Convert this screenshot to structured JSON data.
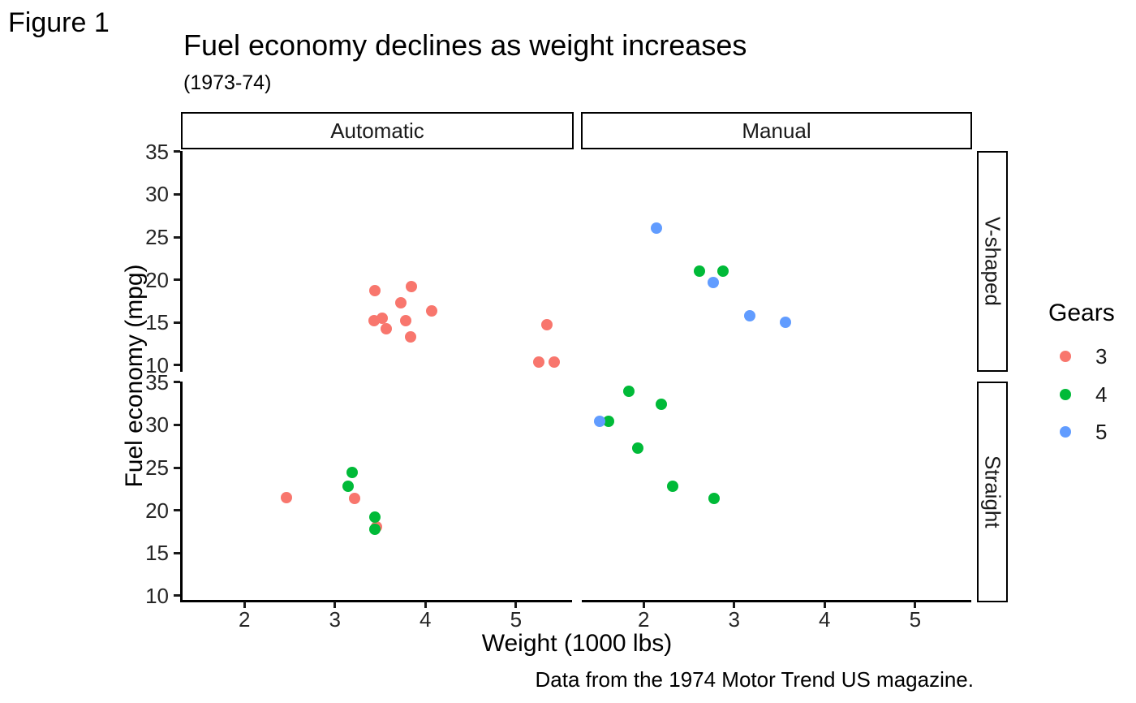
{
  "figure_label": "Figure 1",
  "chart_data": {
    "type": "scatter",
    "title": "Fuel economy declines as weight increases",
    "subtitle": "(1973-74)",
    "caption": "Data from the 1974 Motor Trend US magazine.",
    "xlabel": "Weight (1000 lbs)",
    "ylabel": "Fuel economy (mpg)",
    "grid": false,
    "x_ticks": [
      2,
      3,
      4,
      5
    ],
    "y_ticks": [
      10,
      15,
      20,
      25,
      30,
      35
    ],
    "x_domain": [
      1.317,
      5.62
    ],
    "y_domain": [
      9.225,
      35.075
    ],
    "facet_columns": [
      "Automatic",
      "Manual"
    ],
    "facet_rows": [
      "V-shaped",
      "Straight"
    ],
    "legend": {
      "title": "Gears",
      "position": "right",
      "entries": [
        {
          "label": "3",
          "color": "#F8766D"
        },
        {
          "label": "4",
          "color": "#00BA38"
        },
        {
          "label": "5",
          "color": "#619CFF"
        }
      ]
    },
    "point_fields": [
      "weight_1000lbs",
      "mpg",
      "gears"
    ],
    "facets": [
      {
        "column": "Automatic",
        "row": "V-shaped",
        "points": [
          [
            3.44,
            18.7,
            3
          ],
          [
            3.57,
            14.3,
            3
          ],
          [
            4.07,
            16.4,
            3
          ],
          [
            3.73,
            17.3,
            3
          ],
          [
            3.78,
            15.2,
            3
          ],
          [
            5.25,
            10.4,
            3
          ],
          [
            5.424,
            10.4,
            3
          ],
          [
            5.345,
            14.7,
            3
          ],
          [
            3.52,
            15.5,
            3
          ],
          [
            3.435,
            15.2,
            3
          ],
          [
            3.84,
            13.3,
            3
          ],
          [
            3.845,
            19.2,
            3
          ]
        ]
      },
      {
        "column": "Automatic",
        "row": "Straight",
        "points": [
          [
            3.215,
            21.4,
            3
          ],
          [
            3.46,
            18.1,
            3
          ],
          [
            3.19,
            24.4,
            4
          ],
          [
            3.15,
            22.8,
            4
          ],
          [
            3.44,
            19.2,
            4
          ],
          [
            3.44,
            17.8,
            4
          ],
          [
            2.465,
            21.5,
            3
          ]
        ]
      },
      {
        "column": "Manual",
        "row": "V-shaped",
        "points": [
          [
            2.62,
            21.0,
            4
          ],
          [
            2.875,
            21.0,
            4
          ],
          [
            2.14,
            26.0,
            5
          ],
          [
            3.17,
            15.8,
            5
          ],
          [
            2.77,
            19.7,
            5
          ],
          [
            3.57,
            15.0,
            5
          ]
        ]
      },
      {
        "column": "Manual",
        "row": "Straight",
        "points": [
          [
            2.32,
            22.8,
            4
          ],
          [
            2.2,
            32.4,
            4
          ],
          [
            1.615,
            30.4,
            4
          ],
          [
            1.835,
            33.9,
            4
          ],
          [
            1.935,
            27.3,
            4
          ],
          [
            1.513,
            30.4,
            5
          ],
          [
            2.78,
            21.4,
            4
          ]
        ]
      }
    ]
  }
}
